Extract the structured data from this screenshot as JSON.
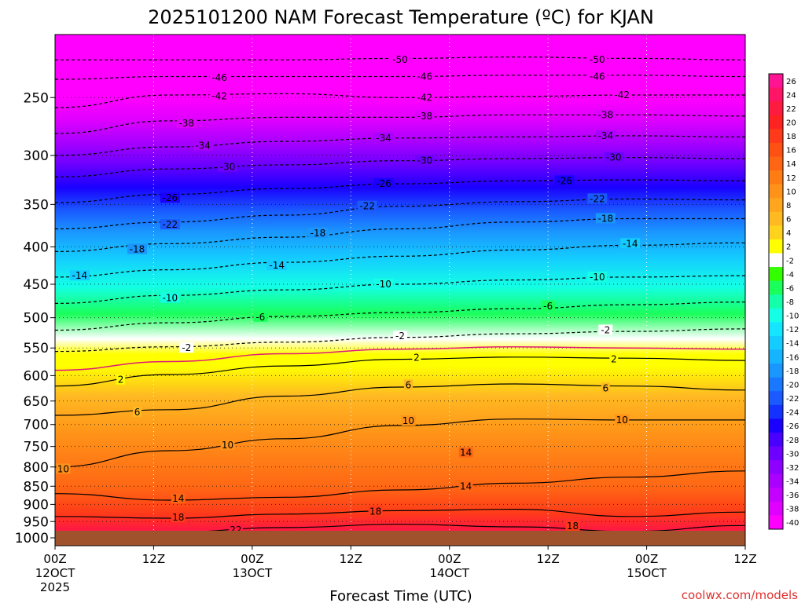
{
  "chart_data": {
    "type": "heatmap",
    "title": "2025101200 NAM Forecast Temperature (ºC) for KJAN",
    "xlabel": "Forecast Time (UTC)",
    "ylabel": "",
    "credit": "coolwx.com/models",
    "x_ticks": [
      {
        "hours": 0,
        "line1": "00Z",
        "line2": "12OCT",
        "line3": "2025"
      },
      {
        "hours": 12,
        "line1": "12Z",
        "line2": "",
        "line3": ""
      },
      {
        "hours": 24,
        "line1": "00Z",
        "line2": "13OCT",
        "line3": ""
      },
      {
        "hours": 36,
        "line1": "12Z",
        "line2": "",
        "line3": ""
      },
      {
        "hours": 48,
        "line1": "00Z",
        "line2": "14OCT",
        "line3": ""
      },
      {
        "hours": 60,
        "line1": "12Z",
        "line2": "",
        "line3": ""
      },
      {
        "hours": 72,
        "line1": "00Z",
        "line2": "15OCT",
        "line3": ""
      },
      {
        "hours": 84,
        "line1": "12Z",
        "line2": "",
        "line3": ""
      }
    ],
    "xlim": [
      0,
      84
    ],
    "y_ticks": [
      250,
      300,
      350,
      400,
      450,
      500,
      550,
      600,
      650,
      700,
      750,
      800,
      850,
      900,
      950,
      1000
    ],
    "ylim": [
      205,
      1025
    ],
    "colorbar": {
      "levels": [
        26,
        24,
        22,
        20,
        18,
        16,
        14,
        12,
        10,
        8,
        6,
        4,
        2,
        -2,
        -4,
        -6,
        -8,
        -10,
        -12,
        -14,
        -16,
        -18,
        -20,
        -22,
        -24,
        -26,
        -28,
        -30,
        -32,
        -34,
        -36,
        -38,
        -40
      ],
      "colors": [
        "#ff1493",
        "#ff1466",
        "#ff1a40",
        "#ff2222",
        "#ff3a1a",
        "#ff5014",
        "#ff6614",
        "#ff7c14",
        "#ff9218",
        "#ffa61e",
        "#ffba22",
        "#ffd21e",
        "#ffff00",
        "#ffffff",
        "#33ff00",
        "#1aff5a",
        "#14ffaa",
        "#14ffe6",
        "#14e6ff",
        "#14ccff",
        "#14b4ff",
        "#1a96ff",
        "#1a78ff",
        "#1a5aff",
        "#1432ff",
        "#1a00ff",
        "#4800ff",
        "#6e00ff",
        "#8e00ff",
        "#aa00ff",
        "#c400ff",
        "#e000ff",
        "#ff00ff"
      ]
    },
    "contours": [
      {
        "temp": -50,
        "pressure": [
          222,
          222,
          222,
          221,
          220,
          221,
          222
        ],
        "dashed": true
      },
      {
        "temp": -46,
        "pressure": [
          236,
          234,
          234,
          234,
          233,
          233,
          234
        ],
        "dashed": true
      },
      {
        "temp": -42,
        "pressure": [
          258,
          248,
          247,
          250,
          249,
          248,
          248
        ],
        "dashed": true
      },
      {
        "temp": -38,
        "pressure": [
          280,
          269,
          266,
          266,
          264,
          264,
          265
        ],
        "dashed": true
      },
      {
        "temp": -34,
        "pressure": [
          300,
          292,
          287,
          284,
          283,
          282,
          283
        ],
        "dashed": true
      },
      {
        "temp": -30,
        "pressure": [
          321,
          313,
          309,
          305,
          303,
          302,
          303
        ],
        "dashed": true
      },
      {
        "temp": -26,
        "pressure": [
          348,
          339,
          333,
          328,
          325,
          324,
          325
        ],
        "dashed": true
      },
      {
        "temp": -22,
        "pressure": [
          378,
          370,
          362,
          352,
          347,
          344,
          345
        ],
        "dashed": true
      },
      {
        "temp": -18,
        "pressure": [
          406,
          396,
          388,
          378,
          370,
          366,
          366
        ],
        "dashed": true
      },
      {
        "temp": -14,
        "pressure": [
          440,
          430,
          420,
          412,
          404,
          398,
          395
        ],
        "dashed": true
      },
      {
        "temp": -10,
        "pressure": [
          478,
          466,
          458,
          450,
          444,
          440,
          438
        ],
        "dashed": true
      },
      {
        "temp": -6,
        "pressure": [
          520,
          508,
          498,
          492,
          486,
          480,
          476
        ],
        "dashed": true
      },
      {
        "temp": -2,
        "pressure": [
          556,
          548,
          540,
          532,
          526,
          522,
          518
        ],
        "dashed": true
      },
      {
        "temp": 2,
        "pressure": [
          620,
          598,
          582,
          570,
          566,
          568,
          572
        ],
        "dashed": false
      },
      {
        "temp": 6,
        "pressure": [
          680,
          668,
          640,
          622,
          616,
          620,
          628
        ],
        "dashed": false
      },
      {
        "temp": 10,
        "pressure": [
          800,
          760,
          732,
          702,
          688,
          690,
          690
        ],
        "dashed": false
      },
      {
        "temp": 14,
        "pressure": [
          870,
          888,
          880,
          860,
          842,
          826,
          810
        ],
        "dashed": false
      },
      {
        "temp": 18,
        "pressure": [
          935,
          940,
          928,
          918,
          914,
          935,
          922
        ],
        "dashed": false
      },
      {
        "temp": 22,
        "pressure": [
          992,
          982,
          968,
          958,
          966,
          980,
          962
        ],
        "dashed": false
      }
    ],
    "freezing_line": {
      "temp": 0,
      "pressure": [
        590,
        574,
        560,
        552,
        548,
        550,
        552
      ]
    },
    "contour_labels": [
      {
        "text": "-50",
        "hours": 42,
        "pressure": 222
      },
      {
        "text": "-50",
        "hours": 66,
        "pressure": 222
      },
      {
        "text": "-46",
        "hours": 20,
        "pressure": 235
      },
      {
        "text": "-46",
        "hours": 45,
        "pressure": 234
      },
      {
        "text": "-46",
        "hours": 66,
        "pressure": 234
      },
      {
        "text": "-42",
        "hours": 20,
        "pressure": 249
      },
      {
        "text": "-42",
        "hours": 45,
        "pressure": 250
      },
      {
        "text": "-42",
        "hours": 69,
        "pressure": 248
      },
      {
        "text": "-38",
        "hours": 16,
        "pressure": 271
      },
      {
        "text": "-38",
        "hours": 45,
        "pressure": 265
      },
      {
        "text": "-38",
        "hours": 67,
        "pressure": 264
      },
      {
        "text": "-34",
        "hours": 18,
        "pressure": 291
      },
      {
        "text": "-34",
        "hours": 40,
        "pressure": 284
      },
      {
        "text": "-34",
        "hours": 67,
        "pressure": 282
      },
      {
        "text": "-30",
        "hours": 21,
        "pressure": 311
      },
      {
        "text": "-30",
        "hours": 45,
        "pressure": 305
      },
      {
        "text": "-30",
        "hours": 68,
        "pressure": 302
      },
      {
        "text": "-26",
        "hours": 14,
        "pressure": 343
      },
      {
        "text": "-26",
        "hours": 40,
        "pressure": 328
      },
      {
        "text": "-26",
        "hours": 62,
        "pressure": 325
      },
      {
        "text": "-22",
        "hours": 14,
        "pressure": 373
      },
      {
        "text": "-22",
        "hours": 38,
        "pressure": 352
      },
      {
        "text": "-22",
        "hours": 66,
        "pressure": 344
      },
      {
        "text": "-18",
        "hours": 10,
        "pressure": 403
      },
      {
        "text": "-18",
        "hours": 32,
        "pressure": 383
      },
      {
        "text": "-18",
        "hours": 67,
        "pressure": 366
      },
      {
        "text": "-14",
        "hours": 3,
        "pressure": 438
      },
      {
        "text": "-14",
        "hours": 27,
        "pressure": 424
      },
      {
        "text": "-14",
        "hours": 70,
        "pressure": 396
      },
      {
        "text": "-10",
        "hours": 14,
        "pressure": 470
      },
      {
        "text": "-10",
        "hours": 40,
        "pressure": 450
      },
      {
        "text": "-10",
        "hours": 66,
        "pressure": 440
      },
      {
        "text": "-6",
        "hours": 25,
        "pressure": 499
      },
      {
        "text": "-6",
        "hours": 60,
        "pressure": 482
      },
      {
        "text": "-2",
        "hours": 16,
        "pressure": 550
      },
      {
        "text": "-2",
        "hours": 42,
        "pressure": 530
      },
      {
        "text": "-2",
        "hours": 67,
        "pressure": 520
      },
      {
        "text": "2",
        "hours": 8,
        "pressure": 608
      },
      {
        "text": "2",
        "hours": 44,
        "pressure": 567
      },
      {
        "text": "2",
        "hours": 68,
        "pressure": 570
      },
      {
        "text": "6",
        "hours": 10,
        "pressure": 673
      },
      {
        "text": "6",
        "hours": 43,
        "pressure": 618
      },
      {
        "text": "6",
        "hours": 67,
        "pressure": 624
      },
      {
        "text": "10",
        "hours": 1,
        "pressure": 805
      },
      {
        "text": "10",
        "hours": 21,
        "pressure": 747
      },
      {
        "text": "10",
        "hours": 43,
        "pressure": 692
      },
      {
        "text": "10",
        "hours": 69,
        "pressure": 690
      },
      {
        "text": "14",
        "hours": 15,
        "pressure": 884
      },
      {
        "text": "14",
        "hours": 50,
        "pressure": 765
      },
      {
        "text": "14",
        "hours": 50,
        "pressure": 850
      },
      {
        "text": "18",
        "hours": 15,
        "pressure": 938
      },
      {
        "text": "18",
        "hours": 39,
        "pressure": 920
      },
      {
        "text": "18",
        "hours": 63,
        "pressure": 964
      },
      {
        "text": "22",
        "hours": 22,
        "pressure": 975
      }
    ]
  }
}
